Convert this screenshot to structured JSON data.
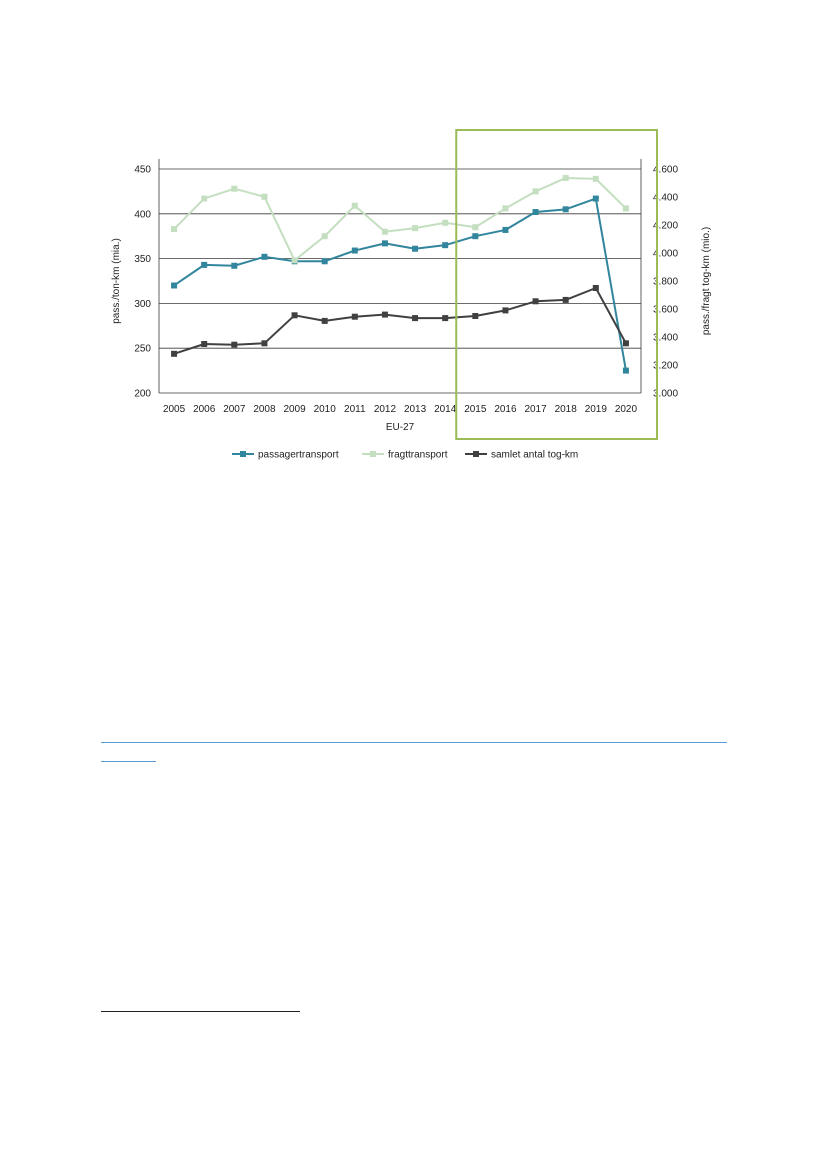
{
  "chart_data": {
    "type": "line",
    "title": "",
    "xlabel": "EU-27",
    "ylabel_left": "pass./ton-km (mia.)",
    "ylabel_right": "pass./fragt tog-km (mio.)",
    "categories": [
      "2005",
      "2006",
      "2007",
      "2008",
      "2009",
      "2010",
      "2011",
      "2012",
      "2013",
      "2014",
      "2015",
      "2016",
      "2017",
      "2018",
      "2019",
      "2020"
    ],
    "y_left": {
      "lim": [
        200,
        450
      ],
      "ticks": [
        200,
        250,
        300,
        350,
        400,
        450
      ],
      "tick_labels": [
        "200",
        "250",
        "300",
        "350",
        "400",
        "450"
      ]
    },
    "y_right": {
      "lim": [
        3000,
        4600
      ],
      "ticks": [
        3000,
        3200,
        3400,
        3600,
        3800,
        4000,
        4200,
        4400,
        4600
      ],
      "tick_labels": [
        "3.000",
        "3.200",
        "3.400",
        "3.600",
        "3.800",
        "4.000",
        "4.200",
        "4.400",
        "4.600"
      ]
    },
    "grid": true,
    "legend_position": "bottom",
    "highlight": {
      "from": "2015",
      "to": "2020",
      "color": "#9bbb59"
    },
    "series": [
      {
        "name": "passagertransport",
        "axis": "left",
        "color": "#31859c",
        "values": [
          320,
          343,
          342,
          352,
          347,
          347,
          359,
          367,
          361,
          365,
          375,
          382,
          402,
          405,
          417,
          225
        ]
      },
      {
        "name": "fragttransport",
        "axis": "left",
        "color": "#c4dfc0",
        "values": [
          383,
          417,
          428,
          419,
          348,
          375,
          409,
          380,
          384,
          390,
          385,
          406,
          425,
          440,
          439,
          406
        ]
      },
      {
        "name": "samlet antal tog-km",
        "axis": "right",
        "color": "#404040",
        "values": [
          3280,
          3350,
          3345,
          3355,
          3555,
          3515,
          3545,
          3560,
          3535,
          3535,
          3550,
          3590,
          3655,
          3665,
          3750,
          3355
        ]
      }
    ]
  }
}
